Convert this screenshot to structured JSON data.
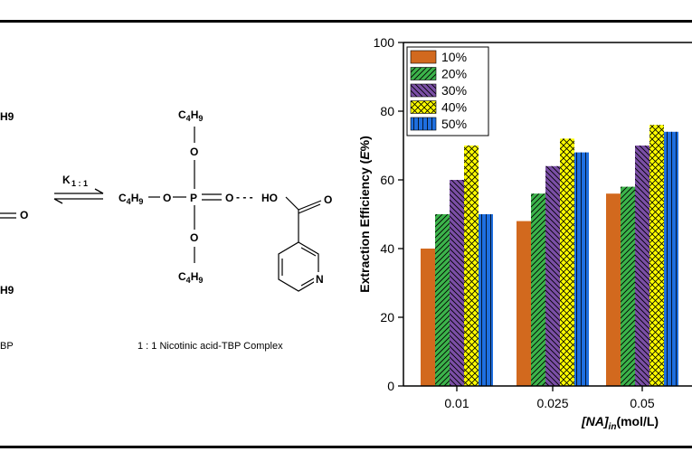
{
  "scheme": {
    "left_fragments": [
      "H9",
      "O",
      "H9",
      "BP"
    ],
    "equilibrium_constant": "K",
    "equilibrium_subscript": "1 : 1",
    "complex": {
      "top_group": "C4H9",
      "left_group": "C4H9",
      "bottom_group": "C4H9",
      "o_top": "O",
      "o_left": "O",
      "o_bottom": "O",
      "phosphorus": "P",
      "ester_o": "O",
      "hydrogen_bond": "- - -",
      "hydroxyl": "HO",
      "carbonyl_o": "O",
      "ring_n": "N"
    },
    "caption": "1 : 1 Nicotinic acid-TBP Complex"
  },
  "chart_data": {
    "type": "bar",
    "categories": [
      "0.01",
      "0.025",
      "0.05"
    ],
    "series": [
      {
        "name": "10%",
        "values": [
          40,
          48,
          56
        ],
        "color": "#d2691e",
        "pattern": "none"
      },
      {
        "name": "20%",
        "values": [
          50,
          56,
          58
        ],
        "color": "#3cb44b",
        "pattern": "diag-right"
      },
      {
        "name": "30%",
        "values": [
          60,
          64,
          70
        ],
        "color": "#7b4fa6",
        "pattern": "diag-left"
      },
      {
        "name": "40%",
        "values": [
          70,
          72,
          76
        ],
        "color": "#ffff00",
        "pattern": "crosshatch"
      },
      {
        "name": "50%",
        "values": [
          50,
          68,
          74
        ],
        "color": "#1e6fe0",
        "pattern": "vertical"
      }
    ],
    "yticks": [
      "0",
      "20",
      "40",
      "60",
      "80",
      "100"
    ],
    "ylim": [
      0,
      100
    ],
    "ylabel_main": "Extraction Efficiency (",
    "ylabel_var": "E",
    "ylabel_unit": "%)",
    "xlabel_var": "[NA]",
    "xlabel_sub": "in",
    "xlabel_unit": "(mol/L)",
    "legend_position": "top-left"
  }
}
